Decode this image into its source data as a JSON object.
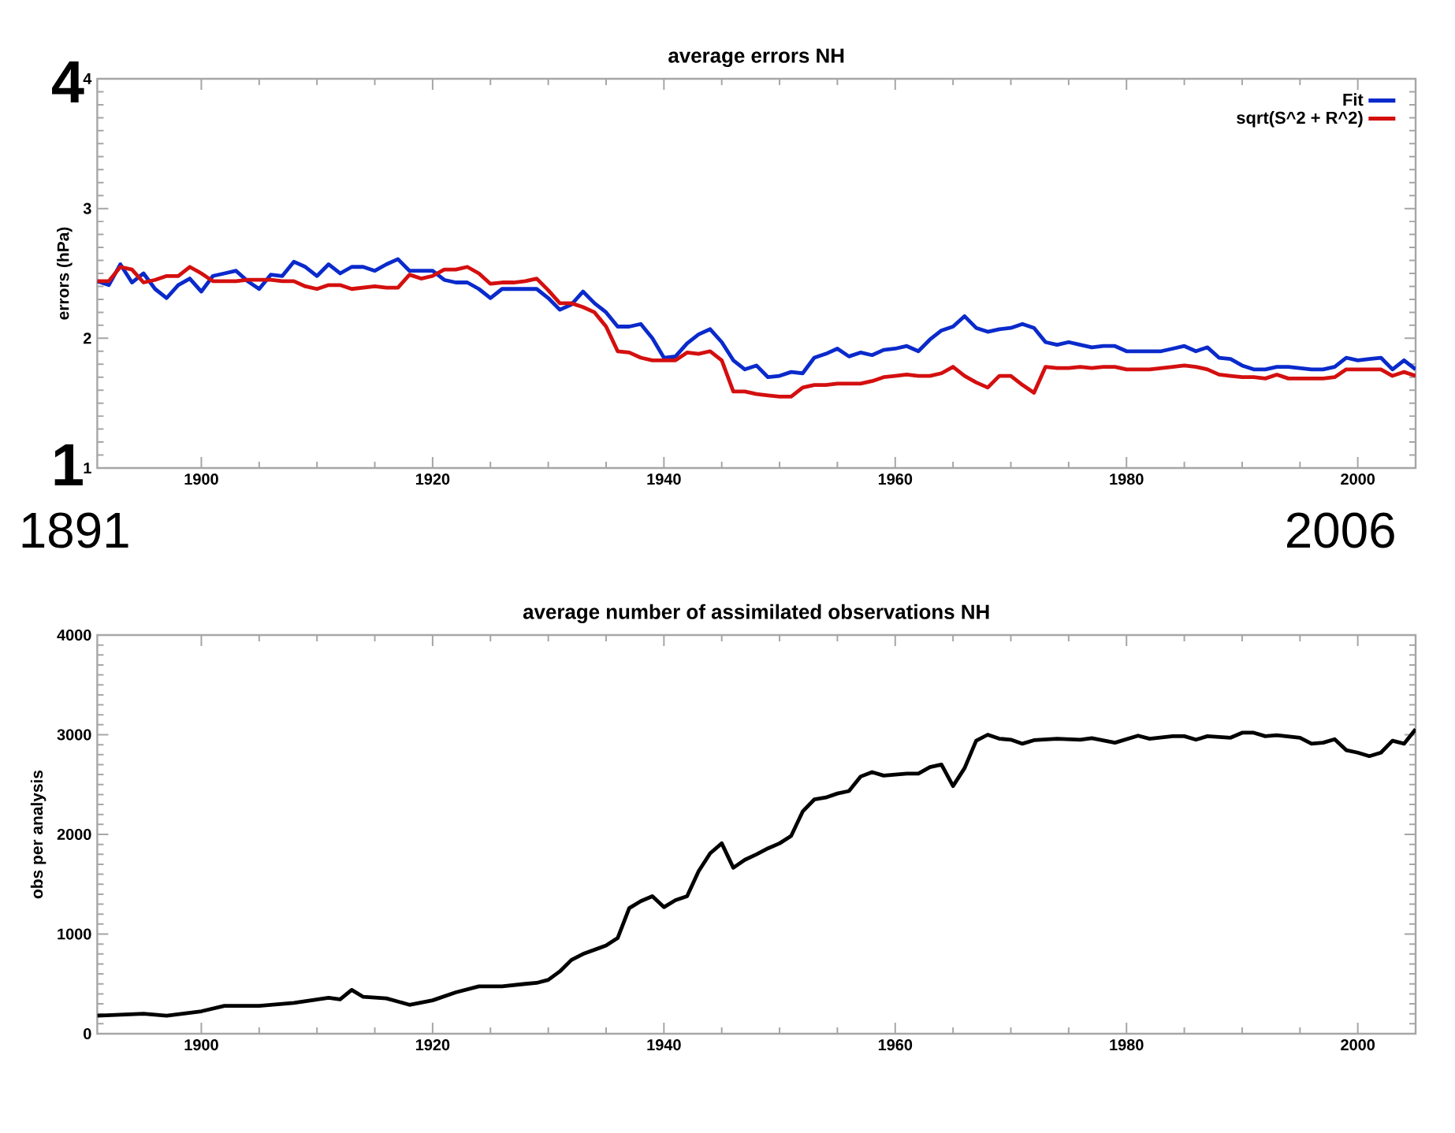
{
  "chart_data": [
    {
      "type": "line",
      "title": "average errors NH",
      "ylabel": "errors (hPa)",
      "x": [
        1891,
        1892,
        1893,
        1894,
        1895,
        1896,
        1897,
        1898,
        1899,
        1900,
        1901,
        1902,
        1903,
        1904,
        1905,
        1906,
        1907,
        1908,
        1909,
        1910,
        1911,
        1912,
        1913,
        1914,
        1915,
        1916,
        1917,
        1918,
        1919,
        1920,
        1921,
        1922,
        1923,
        1924,
        1925,
        1926,
        1927,
        1928,
        1929,
        1930,
        1931,
        1932,
        1933,
        1934,
        1935,
        1936,
        1937,
        1938,
        1939,
        1940,
        1941,
        1942,
        1943,
        1944,
        1945,
        1946,
        1947,
        1948,
        1949,
        1950,
        1951,
        1952,
        1953,
        1954,
        1955,
        1956,
        1957,
        1958,
        1959,
        1960,
        1961,
        1962,
        1963,
        1964,
        1965,
        1966,
        1967,
        1968,
        1969,
        1970,
        1971,
        1972,
        1973,
        1974,
        1975,
        1976,
        1977,
        1978,
        1979,
        1980,
        1981,
        1982,
        1983,
        1984,
        1985,
        1986,
        1987,
        1988,
        1989,
        1990,
        1991,
        1992,
        1993,
        1994,
        1995,
        1996,
        1997,
        1998,
        1999,
        2000,
        2001,
        2002,
        2003,
        2004,
        2005
      ],
      "series": [
        {
          "name": "Fit",
          "color": "#0a2acb",
          "values": [
            2.44,
            2.41,
            2.57,
            2.43,
            2.5,
            2.38,
            2.31,
            2.41,
            2.46,
            2.36,
            2.48,
            2.5,
            2.52,
            2.44,
            2.38,
            2.49,
            2.48,
            2.59,
            2.55,
            2.48,
            2.57,
            2.5,
            2.55,
            2.55,
            2.52,
            2.57,
            2.61,
            2.52,
            2.52,
            2.52,
            2.45,
            2.43,
            2.43,
            2.38,
            2.31,
            2.38,
            2.38,
            2.38,
            2.38,
            2.31,
            2.22,
            2.26,
            2.36,
            2.27,
            2.2,
            2.09,
            2.09,
            2.11,
            2.0,
            1.85,
            1.86,
            1.96,
            2.03,
            2.07,
            1.97,
            1.83,
            1.76,
            1.79,
            1.7,
            1.71,
            1.74,
            1.73,
            1.85,
            1.88,
            1.92,
            1.86,
            1.89,
            1.87,
            1.91,
            1.92,
            1.94,
            1.9,
            1.99,
            2.06,
            2.09,
            2.17,
            2.08,
            2.05,
            2.07,
            2.08,
            2.11,
            2.08,
            1.97,
            1.95,
            1.97,
            1.95,
            1.93,
            1.94,
            1.94,
            1.9,
            1.9,
            1.9,
            1.9,
            1.92,
            1.94,
            1.9,
            1.93,
            1.85,
            1.84,
            1.79,
            1.76,
            1.76,
            1.78,
            1.78,
            1.77,
            1.76,
            1.76,
            1.78,
            1.85,
            1.83,
            1.84,
            1.85,
            1.76,
            1.83,
            1.76
          ]
        },
        {
          "name": "sqrt(S^2 + R^2)",
          "color": "#d40f0f",
          "values": [
            2.44,
            2.44,
            2.55,
            2.53,
            2.43,
            2.45,
            2.48,
            2.48,
            2.55,
            2.5,
            2.44,
            2.44,
            2.44,
            2.45,
            2.45,
            2.45,
            2.44,
            2.44,
            2.4,
            2.38,
            2.41,
            2.41,
            2.38,
            2.39,
            2.4,
            2.39,
            2.39,
            2.49,
            2.46,
            2.48,
            2.53,
            2.53,
            2.55,
            2.5,
            2.42,
            2.43,
            2.43,
            2.44,
            2.46,
            2.37,
            2.27,
            2.27,
            2.24,
            2.2,
            2.09,
            1.9,
            1.89,
            1.85,
            1.83,
            1.83,
            1.83,
            1.89,
            1.88,
            1.9,
            1.83,
            1.59,
            1.59,
            1.57,
            1.56,
            1.55,
            1.55,
            1.62,
            1.64,
            1.64,
            1.65,
            1.65,
            1.65,
            1.67,
            1.7,
            1.71,
            1.72,
            1.71,
            1.71,
            1.73,
            1.78,
            1.71,
            1.66,
            1.62,
            1.71,
            1.71,
            1.64,
            1.58,
            1.78,
            1.77,
            1.77,
            1.78,
            1.77,
            1.78,
            1.78,
            1.76,
            1.76,
            1.76,
            1.77,
            1.78,
            1.79,
            1.78,
            1.76,
            1.72,
            1.71,
            1.7,
            1.7,
            1.69,
            1.72,
            1.69,
            1.69,
            1.69,
            1.69,
            1.7,
            1.76,
            1.76,
            1.76,
            1.76,
            1.71,
            1.74,
            1.71
          ]
        }
      ],
      "xlim": [
        1891,
        2005
      ],
      "ylim": [
        1,
        4
      ],
      "xticks": [
        1900,
        1920,
        1940,
        1960,
        1980,
        2000
      ],
      "yticks": [
        1,
        2,
        3,
        4
      ],
      "legend": "top right",
      "line_style": "solid",
      "grid": false,
      "annotations": [
        "4",
        "1",
        "1891",
        "2006"
      ]
    },
    {
      "type": "line",
      "title": "average number of assimilated observations NH",
      "ylabel": "obs per analysis",
      "series": [
        {
          "color": "#000000",
          "x": [
            1891,
            1895,
            1897,
            1900,
            1902,
            1905,
            1908,
            1911,
            1912,
            1913,
            1914,
            1916,
            1918,
            1920,
            1922,
            1924,
            1926,
            1928,
            1929,
            1930,
            1931,
            1932,
            1933,
            1935,
            1936,
            1937,
            1938,
            1939,
            1940,
            1941,
            1942,
            1943,
            1944,
            1945,
            1946,
            1947,
            1948,
            1949,
            1950,
            1951,
            1952,
            1953,
            1954,
            1955,
            1956,
            1957,
            1958,
            1959,
            1960,
            1961,
            1962,
            1963,
            1964,
            1965,
            1966,
            1967,
            1968,
            1969,
            1970,
            1971,
            1972,
            1974,
            1976,
            1977,
            1979,
            1981,
            1982,
            1984,
            1985,
            1986,
            1987,
            1989,
            1990,
            1991,
            1992,
            1993,
            1995,
            1996,
            1997,
            1998,
            1999,
            2000,
            2001,
            2002,
            2003,
            2004,
            2005
          ],
          "values": [
            180,
            200,
            180,
            225,
            280,
            280,
            310,
            360,
            345,
            440,
            370,
            355,
            290,
            335,
            415,
            475,
            475,
            500,
            510,
            540,
            625,
            740,
            800,
            885,
            960,
            1260,
            1330,
            1380,
            1270,
            1340,
            1380,
            1630,
            1810,
            1910,
            1665,
            1745,
            1800,
            1860,
            1910,
            1985,
            2230,
            2350,
            2370,
            2410,
            2435,
            2580,
            2625,
            2590,
            2600,
            2610,
            2610,
            2675,
            2700,
            2485,
            2665,
            2940,
            3000,
            2960,
            2950,
            2910,
            2945,
            2960,
            2950,
            2965,
            2920,
            2990,
            2960,
            2985,
            2985,
            2950,
            2985,
            2970,
            3020,
            3020,
            2985,
            2995,
            2970,
            2910,
            2920,
            2955,
            2845,
            2820,
            2785,
            2820,
            2940,
            2910,
            3055
          ]
        }
      ],
      "xlim": [
        1891,
        2005
      ],
      "ylim": [
        0,
        4000
      ],
      "xticks": [
        1900,
        1920,
        1940,
        1960,
        1980,
        2000
      ],
      "yticks": [
        0,
        1000,
        2000,
        3000,
        4000
      ],
      "legend": false,
      "line_style": "solid",
      "grid": false
    }
  ]
}
